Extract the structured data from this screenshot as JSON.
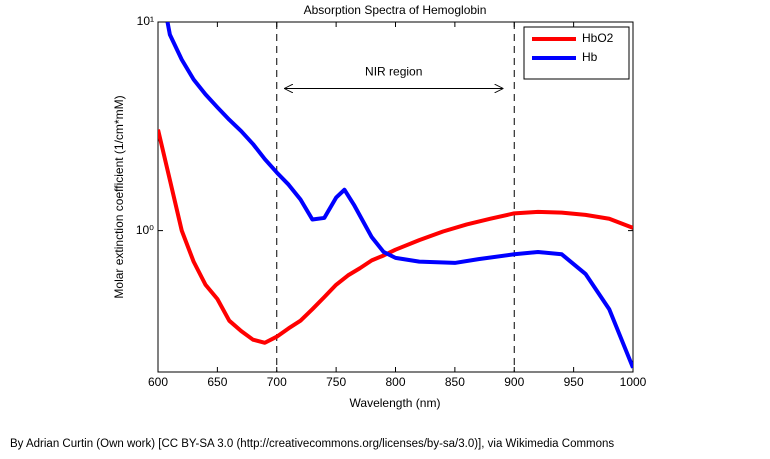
{
  "chart_data": {
    "type": "line",
    "title": "Absorption Spectra of Hemoglobin",
    "x_label": "Wavelength (nm)",
    "y_label": "Molar extinction coefficient (1/cm*mM)",
    "log_y": true,
    "legend": "northeast",
    "xlim": [
      600,
      1000
    ],
    "xticks": [
      600,
      650,
      700,
      750,
      800,
      850,
      900,
      950,
      1000
    ],
    "ylim": [
      0.21,
      10
    ],
    "yticks": [
      {
        "value": 1,
        "label": "10⁰"
      },
      {
        "value": 10,
        "label": "10¹"
      }
    ],
    "vlines": [
      700,
      900
    ],
    "annotations": [
      {
        "text": "NIR region",
        "x_start": 707,
        "x_end": 890,
        "y": 4.8
      }
    ],
    "series": [
      {
        "name": "HbO2",
        "color": "#ff0000",
        "x": [
          600,
          610,
          620,
          630,
          640,
          650,
          660,
          670,
          680,
          690,
          700,
          710,
          720,
          730,
          740,
          750,
          760,
          770,
          780,
          790,
          800,
          820,
          840,
          860,
          880,
          900,
          920,
          940,
          960,
          980,
          1000
        ],
        "values": [
          3.05,
          1.75,
          1.0,
          0.71,
          0.55,
          0.47,
          0.37,
          0.33,
          0.3,
          0.29,
          0.31,
          0.34,
          0.37,
          0.42,
          0.48,
          0.55,
          0.61,
          0.66,
          0.72,
          0.76,
          0.81,
          0.9,
          0.99,
          1.07,
          1.14,
          1.21,
          1.23,
          1.22,
          1.19,
          1.14,
          1.03
        ]
      },
      {
        "name": "Hb",
        "color": "#0000ff",
        "x": [
          608,
          610,
          620,
          630,
          640,
          650,
          660,
          670,
          680,
          690,
          700,
          710,
          720,
          730,
          740,
          750,
          757,
          765,
          780,
          790,
          800,
          820,
          850,
          870,
          900,
          920,
          940,
          960,
          980,
          1000
        ],
        "values": [
          10,
          8.7,
          6.6,
          5.3,
          4.5,
          3.9,
          3.4,
          3.0,
          2.6,
          2.2,
          1.9,
          1.66,
          1.41,
          1.13,
          1.15,
          1.44,
          1.57,
          1.33,
          0.93,
          0.79,
          0.74,
          0.71,
          0.7,
          0.73,
          0.77,
          0.79,
          0.77,
          0.62,
          0.42,
          0.22
        ]
      }
    ]
  },
  "footer": "By Adrian Curtin (Own work) [CC BY-SA 3.0 (http://creativecommons.org/licenses/by-sa/3.0)], via Wikimedia Commons"
}
